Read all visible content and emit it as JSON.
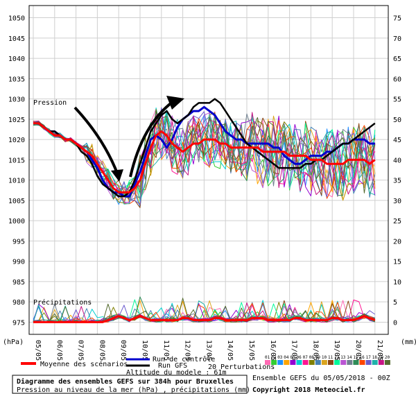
{
  "chart_data": {
    "type": "line",
    "left_axis_unit": "(hPa)",
    "right_axis_unit": "(mm)",
    "left_ticks": [
      1050,
      1045,
      1040,
      1035,
      1030,
      1025,
      1020,
      1015,
      1010,
      1005,
      1000,
      995,
      990,
      985,
      980,
      975
    ],
    "right_ticks": [
      75,
      70,
      65,
      60,
      55,
      50,
      45,
      40,
      35,
      30,
      25,
      20,
      15,
      10,
      5,
      0
    ],
    "x_labels": [
      "05/05",
      "06/05",
      "07/05",
      "08/05",
      "09/05",
      "10/05",
      "11/05",
      "12/05",
      "13/05",
      "14/05",
      "15/05",
      "16/05",
      "17/05",
      "18/05",
      "19/05",
      "20/05",
      "21/05"
    ],
    "pressure_label": "Pression",
    "precip_label": "Précipitations",
    "legend": {
      "mean": "Moyenne des scénarios",
      "control": "Run de contrôle",
      "gfs": "Run GFS",
      "altitude": "Altitude du modele : 61m",
      "perturbations": "20 Perturbations",
      "perturbation_codes": [
        "01",
        "02",
        "03",
        "04",
        "05",
        "06",
        "07",
        "08",
        "09",
        "10",
        "11",
        "12",
        "13",
        "14",
        "15",
        "16",
        "17",
        "18",
        "19",
        "20"
      ]
    },
    "title_box": {
      "line1": "Diagramme des ensembles GEFS sur 384h pour Bruxelles",
      "line2": "Pression au niveau de la mer (hPa) , précipitations (mm)"
    },
    "run_info": "Ensemble GEFS du 05/05/2018 - 00Z",
    "copyright": "Copyright 2018 Meteociel.fr",
    "colors": {
      "mean": "#ff0000",
      "control": "#0000cc",
      "gfs": "#000000",
      "perturbations": [
        "#ff69b4",
        "#32cd32",
        "#1e90ff",
        "#ffa500",
        "#9400d3",
        "#00ced1",
        "#ff1493",
        "#808000",
        "#4682b4",
        "#daa520",
        "#8b4513",
        "#00fa9a",
        "#ba55d3",
        "#708090",
        "#2e8b57",
        "#ff4500",
        "#6a5acd",
        "#20b2aa",
        "#c71585",
        "#556b2f"
      ]
    },
    "x_step_hours": 6,
    "mean_pressure": [
      1024,
      1024,
      1023,
      1022,
      1021,
      1021,
      1020,
      1020,
      1019,
      1018,
      1017,
      1016,
      1014,
      1012,
      1010,
      1008,
      1007,
      1007,
      1007,
      1008,
      1010,
      1014,
      1018,
      1021,
      1022,
      1021,
      1019,
      1018,
      1017,
      1018,
      1019,
      1019,
      1020,
      1020,
      1020,
      1019,
      1019,
      1018,
      1018,
      1018,
      1018,
      1018,
      1018,
      1017,
      1017,
      1017,
      1017,
      1017,
      1016,
      1016,
      1016,
      1016,
      1015,
      1015,
      1015,
      1014,
      1014,
      1014,
      1014,
      1015,
      1015,
      1015,
      1015,
      1014,
      1015
    ],
    "control_pressure": [
      1024,
      1024,
      1023,
      1022,
      1022,
      1021,
      1020,
      1020,
      1019,
      1018,
      1017,
      1015,
      1013,
      1010,
      1008,
      1007,
      1007,
      1006,
      1006,
      1009,
      1012,
      1016,
      1020,
      1021,
      1020,
      1018,
      1020,
      1023,
      1025,
      1026,
      1027,
      1027,
      1028,
      1027,
      1026,
      1024,
      1022,
      1021,
      1020,
      1020,
      1019,
      1019,
      1019,
      1019,
      1019,
      1018,
      1018,
      1016,
      1015,
      1014,
      1014,
      1015,
      1016,
      1016,
      1016,
      1017,
      1017,
      1018,
      1019,
      1019,
      1020,
      1020,
      1020,
      1019,
      1019
    ],
    "gfs_pressure": [
      1024,
      1024,
      1023,
      1022,
      1022,
      1021,
      1020,
      1020,
      1019,
      1017,
      1016,
      1014,
      1011,
      1009,
      1008,
      1007,
      1006,
      1006,
      1007,
      1010,
      1014,
      1018,
      1022,
      1024,
      1026,
      1027,
      1025,
      1024,
      1025,
      1026,
      1028,
      1029,
      1029,
      1029,
      1030,
      1029,
      1027,
      1025,
      1023,
      1021,
      1019,
      1018,
      1017,
      1016,
      1015,
      1014,
      1013,
      1013,
      1013,
      1013,
      1013,
      1014,
      1014,
      1015,
      1015,
      1016,
      1017,
      1018,
      1019,
      1019,
      1020,
      1021,
      1022,
      1023,
      1024
    ],
    "mean_precip": [
      0,
      0,
      0,
      0,
      0,
      0,
      0,
      0,
      0,
      0,
      0,
      0,
      0,
      0,
      0.5,
      1,
      1.5,
      1,
      0.5,
      1,
      1.5,
      1,
      0.5,
      0.5,
      0.5,
      0.5,
      0.5,
      0.5,
      1,
      1,
      0.5,
      0.5,
      0.5,
      0.5,
      1,
      1,
      0.5,
      0.5,
      0.5,
      0.5,
      0.5,
      1,
      1,
      1,
      0.5,
      0.5,
      0.5,
      0.5,
      0.5,
      1,
      1,
      0.5,
      0.5,
      0.5,
      0.5,
      0.5,
      1,
      1,
      0.5,
      0.5,
      0.5,
      1,
      1.5,
      1,
      0.5
    ]
  },
  "arrows": {
    "descending": "down-arrow",
    "ascending": "up-arrow"
  }
}
